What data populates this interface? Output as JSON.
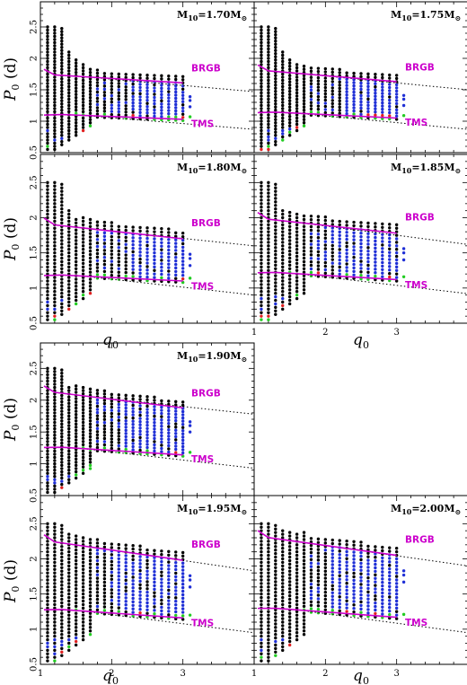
{
  "figure": {
    "ylabel_main": "P",
    "ylabel_sub": "0",
    "ylabel_unit": " (d)",
    "xlabel_main": "q",
    "xlabel_sub": "0"
  },
  "colors": {
    "black_points": "#000000",
    "blue_points": "#1f2fd6",
    "green_points": "#22cc22",
    "red_points": "#e02020",
    "magenta_line": "#cc00cc",
    "dotted_line": "#000000"
  },
  "chart_data": [
    {
      "type": "scatter",
      "panel_label": "M10=1.70M⊙",
      "mass_text": "M",
      "mass_sub": "10",
      "mass_val": "=1.70M",
      "sun": "⊙",
      "brgb_label": "BRGB",
      "tms_label": "TMS",
      "xlim": [
        1,
        4
      ],
      "ylim": [
        0.5,
        2.9
      ],
      "xticks": [
        "1",
        "2",
        "3"
      ],
      "yticks": [
        "0.5",
        "1",
        "1.5",
        "2",
        "2.5"
      ],
      "q_max": 3.0,
      "brgb_start": 1.75,
      "brgb_end": 1.61,
      "tms_start": 1.12,
      "tms_end": 1.03,
      "dot_brgb_end": 1.47,
      "dot_tms_end": 0.87,
      "show_x_ticklabels": false,
      "show_y_ticklabels": true
    },
    {
      "type": "scatter",
      "panel_label": "M10=1.75M⊙",
      "mass_text": "M",
      "mass_sub": "10",
      "mass_val": "=1.75M",
      "sun": "⊙",
      "brgb_label": "BRGB",
      "tms_label": "TMS",
      "xlim": [
        1,
        4
      ],
      "ylim": [
        0.5,
        2.9
      ],
      "xticks": [
        "1",
        "2",
        "3"
      ],
      "yticks": [
        "0.5",
        "1",
        "1.5",
        "2",
        "2.5"
      ],
      "q_max": 3.0,
      "brgb_start": 1.82,
      "brgb_end": 1.63,
      "tms_start": 1.16,
      "tms_end": 1.05,
      "dot_brgb_end": 1.5,
      "dot_tms_end": 0.87,
      "show_x_ticklabels": false,
      "show_y_ticklabels": false
    },
    {
      "type": "scatter",
      "panel_label": "M10=1.80M⊙",
      "mass_text": "M",
      "mass_sub": "10",
      "mass_val": "=1.80M",
      "sun": "⊙",
      "brgb_label": "BRGB",
      "tms_label": "TMS",
      "xlim": [
        1,
        4
      ],
      "ylim": [
        0.5,
        2.9
      ],
      "xticks": [
        "1",
        "2",
        "3"
      ],
      "yticks": [
        "0.5",
        "1",
        "1.5",
        "2",
        "2.5"
      ],
      "q_max": 3.0,
      "brgb_start": 1.92,
      "brgb_end": 1.7,
      "tms_start": 1.2,
      "tms_end": 1.1,
      "dot_brgb_end": 1.6,
      "dot_tms_end": 0.9,
      "show_x_ticklabels": false,
      "show_y_ticklabels": true
    },
    {
      "type": "scatter",
      "panel_label": "M10=1.85M⊙",
      "mass_text": "M",
      "mass_sub": "10",
      "mass_val": "=1.85M",
      "sun": "⊙",
      "brgb_label": "BRGB",
      "tms_label": "TMS",
      "xlim": [
        1,
        4
      ],
      "ylim": [
        0.5,
        2.9
      ],
      "xticks": [
        "1",
        "2",
        "3"
      ],
      "yticks": [
        "0.5",
        "1",
        "1.5",
        "2",
        "2.5"
      ],
      "q_max": 3.0,
      "brgb_start": 2.0,
      "brgb_end": 1.78,
      "tms_start": 1.24,
      "tms_end": 1.12,
      "dot_brgb_end": 1.62,
      "dot_tms_end": 0.92,
      "show_x_ticklabels": true,
      "show_y_ticklabels": false
    },
    {
      "type": "scatter",
      "panel_label": "M10=1.90M⊙",
      "mass_text": "M",
      "mass_sub": "10",
      "mass_val": "=1.90M",
      "sun": "⊙",
      "brgb_label": "BRGB",
      "tms_label": "TMS",
      "xlim": [
        1,
        4
      ],
      "ylim": [
        0.5,
        2.9
      ],
      "xticks": [
        "1",
        "2",
        "3"
      ],
      "yticks": [
        "0.5",
        "1",
        "1.5",
        "2",
        "2.5"
      ],
      "q_max": 3.0,
      "brgb_start": 2.15,
      "brgb_end": 1.88,
      "tms_start": 1.28,
      "tms_end": 1.14,
      "dot_brgb_end": 1.78,
      "dot_tms_end": 0.93,
      "show_x_ticklabels": false,
      "show_y_ticklabels": true
    },
    {
      "type": "scatter",
      "panel_label": "M10=1.95M⊙",
      "mass_text": "M",
      "mass_sub": "10",
      "mass_val": "=1.95M",
      "sun": "⊙",
      "brgb_label": "BRGB",
      "tms_label": "TMS",
      "xlim": [
        1,
        4
      ],
      "ylim": [
        0.5,
        2.9
      ],
      "xticks": [
        "1",
        "2",
        "3"
      ],
      "yticks": [
        "0.5",
        "1",
        "1.5",
        "2",
        "2.5"
      ],
      "q_max": 3.0,
      "brgb_start": 2.27,
      "brgb_end": 1.98,
      "tms_start": 1.3,
      "tms_end": 1.16,
      "dot_brgb_end": 1.83,
      "dot_tms_end": 0.95,
      "show_x_ticklabels": true,
      "show_y_ticklabels": true
    },
    {
      "type": "scatter",
      "panel_label": "M10=2.00M⊙",
      "mass_text": "M",
      "mass_sub": "10",
      "mass_val": "=2.00M",
      "sun": "⊙",
      "brgb_label": "BRGB",
      "tms_label": "TMS",
      "xlim": [
        1,
        4
      ],
      "ylim": [
        0.5,
        2.9
      ],
      "xticks": [
        "1",
        "2",
        "3"
      ],
      "yticks": [
        "0.5",
        "1",
        "1.5",
        "2",
        "2.5"
      ],
      "q_max": 3.0,
      "brgb_start": 2.33,
      "brgb_end": 2.05,
      "tms_start": 1.32,
      "tms_end": 1.17,
      "dot_brgb_end": 1.9,
      "dot_tms_end": 0.95,
      "show_x_ticklabels": true,
      "show_y_ticklabels": false
    }
  ]
}
